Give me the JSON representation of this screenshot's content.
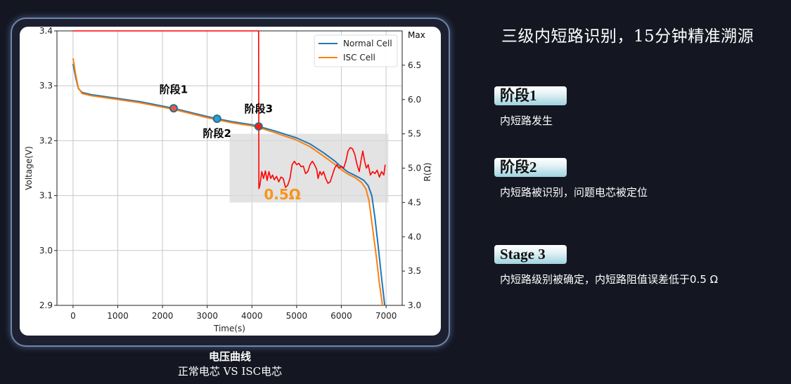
{
  "slide": {
    "title": "三级内短路识别，15分钟精准溯源",
    "caption_title": "电压曲线",
    "caption_subtitle": "正常电芯 VS ISC电芯",
    "stages": [
      {
        "badge": "阶段1",
        "description": "内短路发生"
      },
      {
        "badge": "阶段2",
        "description": "内短路被识别，问题电芯被定位"
      },
      {
        "badge": "Stage 3",
        "description": "内短路级别被确定，内短路阻值误差低于0.5 Ω"
      }
    ]
  },
  "chart_data": {
    "type": "line",
    "xlabel": "Time(s)",
    "ylabel": "Voltage(V)",
    "y2label": "R(Ω)",
    "xlim": [
      -360,
      7360
    ],
    "ylim": [
      2.9,
      3.4
    ],
    "y2lim": [
      3.0,
      7.0
    ],
    "xticks": [
      0,
      1000,
      2000,
      3000,
      4000,
      5000,
      6000,
      7000
    ],
    "yticks": [
      "2.9",
      "3.0",
      "3.1",
      "3.2",
      "3.3",
      "3.4"
    ],
    "y2ticks": [
      "3.0",
      "3.5",
      "4.0",
      "4.5",
      "5.0",
      "5.5",
      "6.0",
      "6.5"
    ],
    "y2_top_label": "Max",
    "grid": true,
    "legend_position": "top-right",
    "series": [
      {
        "name": "Normal Cell",
        "color": "#1f77b4",
        "axis": "left",
        "x": [
          0,
          60,
          120,
          200,
          400,
          1000,
          1500,
          2000,
          2250,
          2700,
          3000,
          3220,
          3600,
          4000,
          4150,
          4500,
          5000,
          5300,
          5600,
          5850,
          6000,
          6150,
          6300,
          6500,
          6600,
          6680,
          6750,
          6820,
          6900,
          6970
        ],
        "y": [
          3.34,
          3.315,
          3.295,
          3.288,
          3.284,
          3.277,
          3.271,
          3.263,
          3.259,
          3.25,
          3.244,
          3.24,
          3.234,
          3.229,
          3.226,
          3.218,
          3.205,
          3.194,
          3.178,
          3.163,
          3.152,
          3.143,
          3.137,
          3.128,
          3.118,
          3.1,
          3.06,
          3.01,
          2.95,
          2.9
        ]
      },
      {
        "name": "ISC Cell",
        "color": "#ff7f0e",
        "axis": "left",
        "x": [
          0,
          60,
          120,
          200,
          400,
          1000,
          1500,
          2000,
          2250,
          2700,
          3000,
          3220,
          3600,
          4000,
          4150,
          4500,
          5000,
          5300,
          5600,
          5850,
          6000,
          6150,
          6300,
          6450,
          6550,
          6620,
          6700,
          6780,
          6850,
          6920
        ],
        "y": [
          3.35,
          3.32,
          3.296,
          3.286,
          3.282,
          3.275,
          3.269,
          3.261,
          3.257,
          3.248,
          3.242,
          3.238,
          3.232,
          3.227,
          3.224,
          3.215,
          3.201,
          3.189,
          3.172,
          3.157,
          3.147,
          3.139,
          3.133,
          3.124,
          3.112,
          3.09,
          3.04,
          2.99,
          2.94,
          2.9
        ]
      },
      {
        "color": "#ff0000",
        "axis": "right",
        "x": [
          0,
          4150,
          4155,
          4180,
          4220,
          4260,
          4300,
          4340,
          4380,
          4420,
          4460,
          4500,
          4550,
          4600,
          4650,
          4700,
          4750,
          4800,
          4850,
          4900,
          4950,
          5000,
          5050,
          5100,
          5150,
          5200,
          5250,
          5300,
          5350,
          5400,
          5450,
          5480,
          5520,
          5560,
          5600,
          5650,
          5700,
          5750,
          5800,
          5850,
          5900,
          5950,
          6000,
          6050,
          6100,
          6150,
          6200,
          6250,
          6300,
          6350,
          6400,
          6450,
          6480,
          6520,
          6560,
          6600,
          6650,
          6700,
          6750,
          6800,
          6850,
          6900,
          6950,
          6980
        ],
        "y": [
          7.0,
          7.0,
          4.7,
          4.75,
          4.95,
          4.85,
          4.96,
          4.82,
          4.95,
          4.85,
          4.9,
          4.83,
          4.88,
          4.8,
          4.87,
          4.85,
          4.72,
          4.75,
          4.85,
          5.05,
          5.1,
          5.05,
          5.07,
          5.02,
          5.03,
          4.92,
          4.95,
          5.05,
          5.1,
          5.05,
          4.98,
          4.85,
          4.95,
          4.9,
          4.95,
          4.85,
          4.78,
          4.8,
          4.9,
          5.0,
          5.05,
          5.0,
          5.03,
          5.0,
          5.1,
          5.25,
          5.3,
          5.28,
          5.2,
          5.05,
          4.95,
          5.15,
          5.25,
          5.1,
          5.0,
          5.05,
          4.9,
          4.95,
          4.92,
          4.97,
          4.87,
          4.95,
          4.9,
          5.05
        ]
      }
    ],
    "markers": [
      {
        "label": "阶段1",
        "x": 2250,
        "y": 3.259,
        "color": "#e8584e"
      },
      {
        "label": "阶段2",
        "x": 3220,
        "y": 3.24,
        "color": "#2b9fd8"
      },
      {
        "label": "阶段3",
        "x": 4150,
        "y": 3.226,
        "color": "#ff1a1a"
      }
    ],
    "highlight": {
      "x": [
        3500,
        7050
      ],
      "r": [
        4.5,
        5.5
      ],
      "label": "0.5Ω",
      "label_color": "#f7941d"
    }
  }
}
